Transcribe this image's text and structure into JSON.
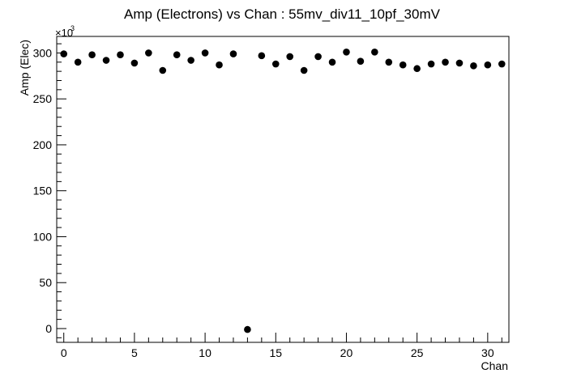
{
  "chart_data": {
    "type": "scatter",
    "title": "Amp (Electrons) vs Chan : 55mv_div11_10pf_30mV",
    "xlabel": "Chan",
    "ylabel": "Amp (Elec)",
    "y_multiplier": "×10",
    "y_multiplier_exponent": "3",
    "xlim": [
      -0.5,
      31.5
    ],
    "ylim": [
      -15,
      318
    ],
    "x_ticks": [
      0,
      5,
      10,
      15,
      20,
      25,
      30
    ],
    "x_tick_labels": [
      "0",
      "5",
      "10",
      "15",
      "20",
      "25",
      "30"
    ],
    "y_ticks": [
      0,
      50,
      100,
      150,
      200,
      250,
      300
    ],
    "y_tick_labels": [
      "0",
      "50",
      "100",
      "150",
      "200",
      "250",
      "300"
    ],
    "grid": false,
    "marker_color": "#000000",
    "series": [
      {
        "x": [
          0,
          1,
          2,
          3,
          4,
          5,
          6,
          7,
          8,
          9,
          10,
          11,
          12,
          13,
          14,
          15,
          16,
          17,
          18,
          19,
          20,
          21,
          22,
          23,
          24,
          25,
          26,
          27,
          28,
          29,
          30,
          31
        ],
        "y": [
          299,
          290,
          298,
          292,
          298,
          289,
          300,
          281,
          298,
          292,
          300,
          287,
          299,
          -1,
          297,
          288,
          296,
          281,
          296,
          290,
          301,
          291,
          301,
          290,
          287,
          283,
          288,
          290,
          289,
          286,
          287,
          288
        ]
      }
    ]
  }
}
